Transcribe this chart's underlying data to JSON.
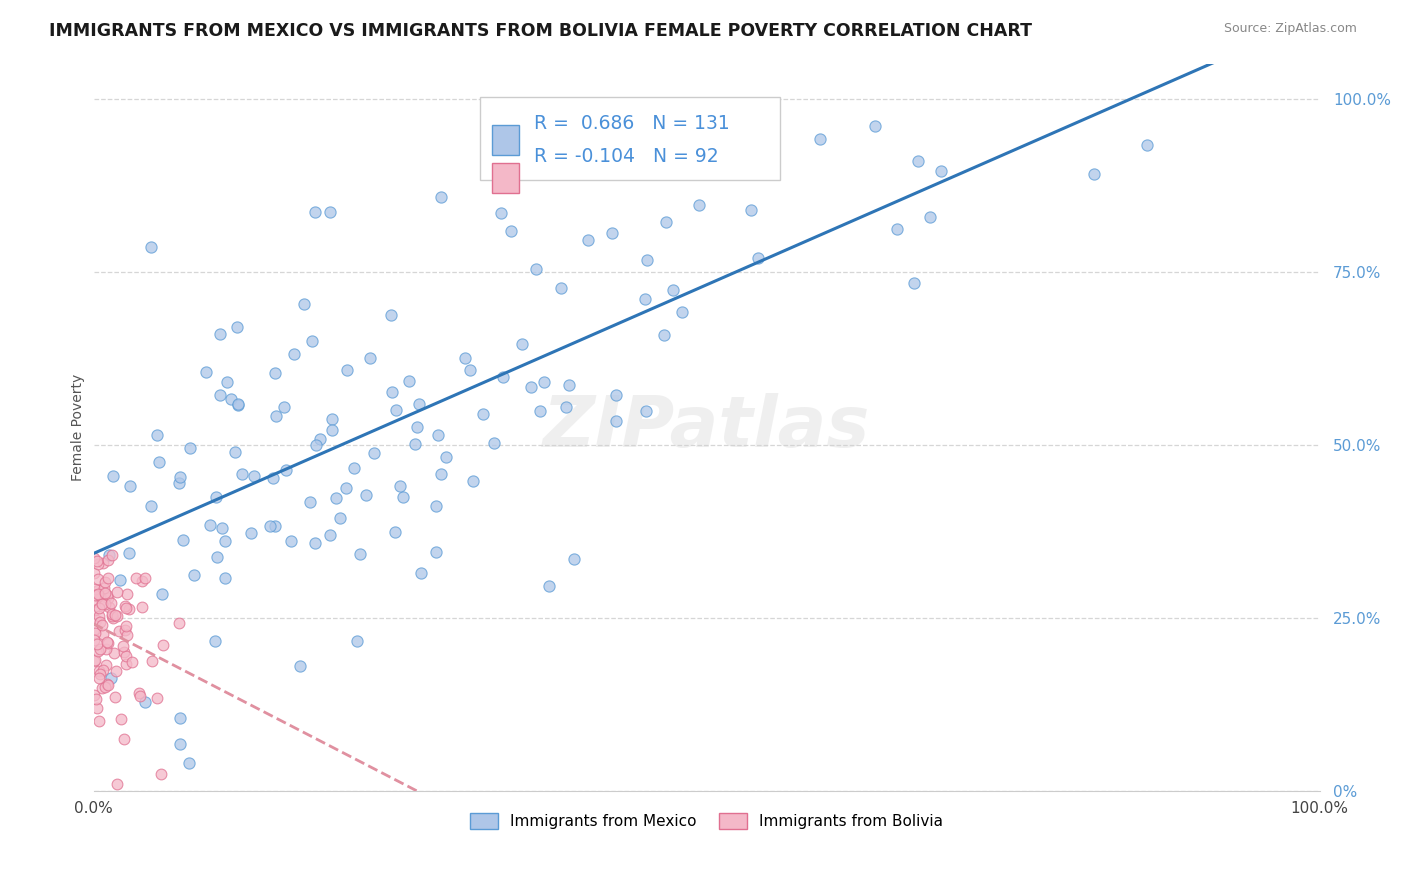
{
  "title": "IMMIGRANTS FROM MEXICO VS IMMIGRANTS FROM BOLIVIA FEMALE POVERTY CORRELATION CHART",
  "source": "Source: ZipAtlas.com",
  "ylabel": "Female Poverty",
  "xlim": [
    0.0,
    1.0
  ],
  "ylim": [
    0.0,
    1.05
  ],
  "mexico_color": "#aec6e8",
  "mexico_edge": "#5b9bd5",
  "bolivia_color": "#f4b8c8",
  "bolivia_edge": "#e07090",
  "mexico_line_color": "#2e75b6",
  "bolivia_line_color": "#e090a0",
  "R_mexico": 0.686,
  "N_mexico": 131,
  "R_bolivia": -0.104,
  "N_bolivia": 92,
  "legend_label_mexico": "Immigrants from Mexico",
  "legend_label_bolivia": "Immigrants from Bolivia",
  "watermark": "ZIPatlas",
  "background_color": "#ffffff",
  "grid_color": "#cccccc",
  "stat_color": "#4a90d9",
  "tick_color": "#5b9bd5",
  "axis_label_color": "#555555"
}
